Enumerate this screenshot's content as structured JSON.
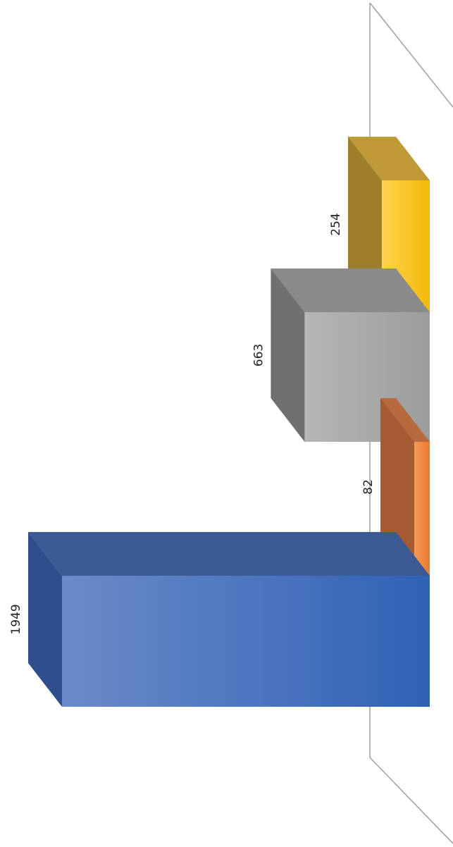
{
  "chart_data": {
    "type": "bar",
    "orientation": "rotated-90-clockwise",
    "three_d": true,
    "title": "",
    "xlabel": "",
    "ylabel": "",
    "ylim": [
      0,
      1949
    ],
    "grid": false,
    "legend": "none",
    "series": [
      {
        "values": [
          1949,
          82,
          663,
          254
        ],
        "labels": [
          "1949",
          "82",
          "663",
          "254"
        ],
        "colors": [
          "#4472c4",
          "#ed7d31",
          "#a5a5a5",
          "#ffc000"
        ]
      }
    ]
  }
}
